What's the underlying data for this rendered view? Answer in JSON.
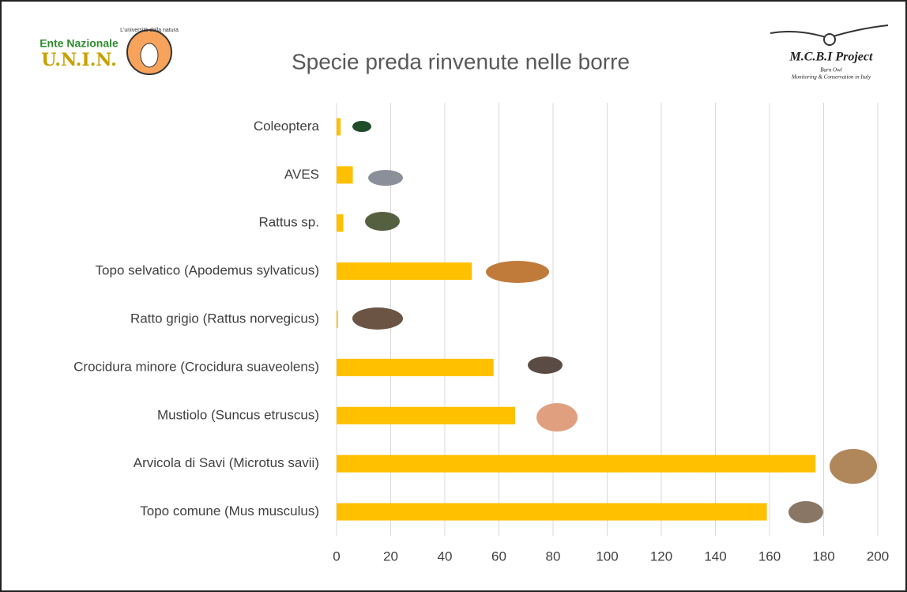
{
  "chart_data": {
    "type": "barh",
    "title": "Specie preda rinvenute nelle borre",
    "categories": [
      "Coleoptera",
      "AVES",
      "Rattus sp.",
      "Topo selvatico (Apodemus sylvaticus)",
      "Ratto grigio (Rattus norvegicus)",
      "Crocidura minore (Crocidura suaveolens)",
      "Mustiolo (Suncus etruscus)",
      "Arvicola di Savi (Microtus savii)",
      "Topo comune (Mus musculus)"
    ],
    "values": [
      1.5,
      6,
      2.5,
      50,
      0.5,
      58,
      66,
      177,
      159
    ],
    "color": "#ffc000",
    "xlim": [
      0,
      200
    ],
    "xticks": [
      0,
      20,
      40,
      60,
      80,
      100,
      120,
      140,
      160,
      180,
      200
    ],
    "grid": true
  },
  "logos": {
    "left": {
      "top": "Ente Nazionale",
      "name": "U.N.I.N.",
      "motto": "L'università della natura"
    },
    "right": {
      "name": "M.C.B.I Project",
      "sub": "Barn Owl",
      "tagline": "Monitoring & Conservation in Italy"
    }
  }
}
